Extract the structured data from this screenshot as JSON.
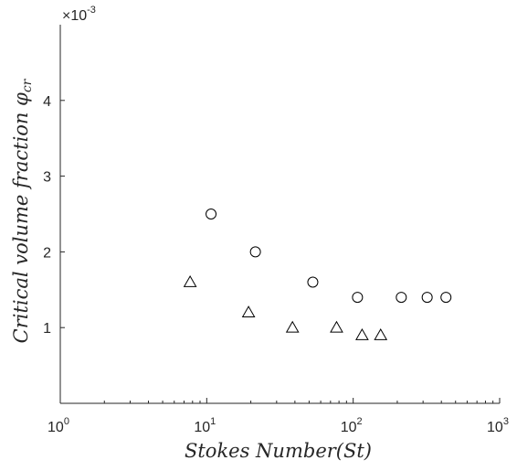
{
  "chart_data": {
    "type": "scatter",
    "title": "",
    "xlabel": "Stokes Number(St)",
    "ylabel": "Critical volume fraction φcr",
    "ylabel_main": "Critical volume fraction φ",
    "ylabel_sub": "cr",
    "xscale": "log",
    "xlim": [
      1,
      1000
    ],
    "ylim": [
      0,
      0.005
    ],
    "y_multiplier_label": "×10",
    "y_multiplier_exp": "-3",
    "x_ticks": [
      {
        "base": "10",
        "exp": "0",
        "value": 1
      },
      {
        "base": "10",
        "exp": "1",
        "value": 10
      },
      {
        "base": "10",
        "exp": "2",
        "value": 100
      },
      {
        "base": "10",
        "exp": "3",
        "value": 1000
      }
    ],
    "y_ticks": [
      {
        "label": "1",
        "value": 0.001
      },
      {
        "label": "2",
        "value": 0.002
      },
      {
        "label": "3",
        "value": 0.003
      },
      {
        "label": "4",
        "value": 0.004
      }
    ],
    "grid": false,
    "legend": "none",
    "series": [
      {
        "marker": "circle",
        "x": [
          10.7,
          21.5,
          53,
          107,
          213,
          320,
          430
        ],
        "y": [
          0.0025,
          0.002,
          0.0016,
          0.0014,
          0.0014,
          0.0014,
          0.0014
        ]
      },
      {
        "marker": "triangle",
        "x": [
          7.7,
          19.3,
          38.5,
          77,
          115,
          154
        ],
        "y": [
          0.0016,
          0.0012,
          0.001,
          0.001,
          0.0009,
          0.0009
        ]
      }
    ],
    "colors": {
      "axis": "#262626",
      "marker_stroke": "#000000",
      "background": "#ffffff"
    }
  }
}
